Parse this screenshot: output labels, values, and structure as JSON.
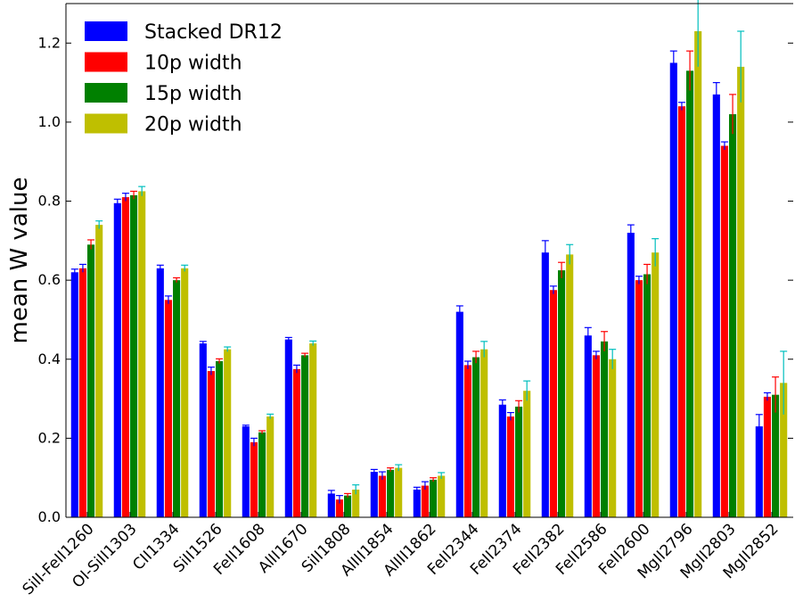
{
  "chart_data": {
    "type": "bar",
    "title": "",
    "xlabel": "",
    "ylabel": "mean W value",
    "ylim": [
      0,
      1.3
    ],
    "yticks": [
      "0.0",
      "0.2",
      "0.4",
      "0.6",
      "0.8",
      "1.0",
      "1.2"
    ],
    "grid": false,
    "legend_position": "top-left",
    "categories": [
      "SiII-FeII1260",
      "OI-SiII1303",
      "CII1334",
      "SiII1526",
      "FeII1608",
      "AlII1670",
      "SiII1808",
      "AlIII1854",
      "AlIII1862",
      "FeII2344",
      "FeII2374",
      "FeII2382",
      "FeII2586",
      "FeII2600",
      "MgII2796",
      "MgII2803",
      "MgII2852"
    ],
    "series": [
      {
        "name": "Stacked DR12",
        "color": "#0000ff",
        "error_color": "#0000ff",
        "values": [
          0.62,
          0.795,
          0.63,
          0.44,
          0.23,
          0.45,
          0.06,
          0.115,
          0.07,
          0.52,
          0.285,
          0.67,
          0.46,
          0.72,
          1.15,
          1.07,
          0.23
        ],
        "errors": [
          0.008,
          0.01,
          0.008,
          0.005,
          0.003,
          0.005,
          0.008,
          0.006,
          0.006,
          0.015,
          0.012,
          0.03,
          0.02,
          0.02,
          0.03,
          0.03,
          0.03
        ]
      },
      {
        "name": "10p width",
        "color": "#ff0000",
        "error_color": "#0000ff",
        "values": [
          0.63,
          0.81,
          0.55,
          0.37,
          0.19,
          0.375,
          0.045,
          0.105,
          0.08,
          0.385,
          0.255,
          0.575,
          0.41,
          0.6,
          1.04,
          0.94,
          0.305
        ]
      },
      {
        "name": "15p width",
        "color": "#008000",
        "error_color": "#ff0000",
        "values": [
          0.69,
          0.815,
          0.6,
          0.395,
          0.215,
          0.41,
          0.055,
          0.12,
          0.095,
          0.405,
          0.28,
          0.625,
          0.445,
          0.615,
          1.13,
          1.02,
          0.31
        ],
        "errors": [
          0.012,
          0.01,
          0.006,
          0.006,
          0.004,
          0.005,
          0.005,
          0.005,
          0.005,
          0.015,
          0.015,
          0.02,
          0.025,
          0.025,
          0.05,
          0.05,
          0.045
        ]
      },
      {
        "name": "20p width",
        "color": "#bfbf00",
        "error_color": "#00bfbf",
        "values": [
          0.74,
          0.825,
          0.63,
          0.425,
          0.255,
          0.44,
          0.07,
          0.125,
          0.105,
          0.425,
          0.32,
          0.665,
          0.4,
          0.67,
          1.23,
          1.14,
          0.34
        ],
        "errors": [
          0.01,
          0.012,
          0.008,
          0.006,
          0.006,
          0.006,
          0.012,
          0.008,
          0.008,
          0.02,
          0.025,
          0.025,
          0.025,
          0.035,
          0.09,
          0.09,
          0.08
        ]
      }
    ]
  }
}
